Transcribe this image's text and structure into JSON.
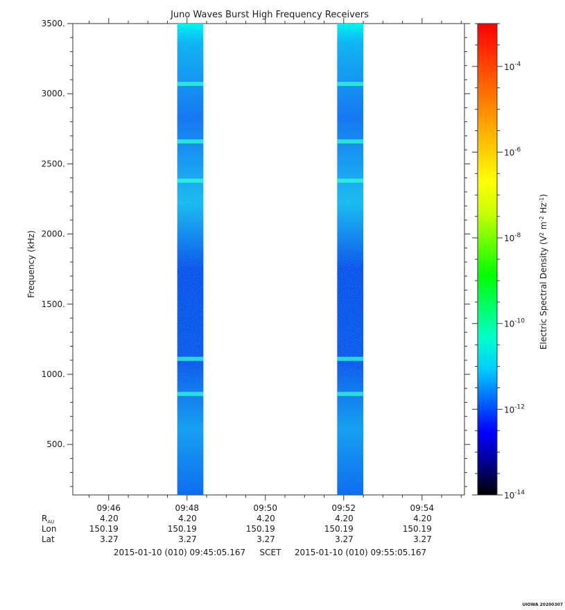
{
  "chart_data": {
    "type": "heatmap",
    "title": "Juno Waves Burst High Frequency Receivers",
    "ylabel": "Frequency (kHz)",
    "ylim": [
      140,
      3500
    ],
    "yticks": [
      500,
      1000,
      1500,
      2000,
      2500,
      3000,
      3500
    ],
    "ytick_labels": [
      "500.",
      "1000.",
      "1500.",
      "2000.",
      "2500.",
      "3000.",
      "3500."
    ],
    "xlim": [
      "09:45:05",
      "09:55:05"
    ],
    "xtick_labels": [
      "09:46",
      "09:48",
      "09:50",
      "09:52",
      "09:54"
    ],
    "ephemeris": {
      "rows": [
        {
          "label": "R",
          "sub": "AU",
          "values": [
            "4.20",
            "4.20",
            "4.20",
            "4.20",
            "4.20"
          ]
        },
        {
          "label": "Lon",
          "sub": "",
          "values": [
            "150.19",
            "150.19",
            "150.19",
            "150.19",
            "150.19"
          ]
        },
        {
          "label": "Lat",
          "sub": "",
          "values": [
            "3.27",
            "3.27",
            "3.27",
            "3.27",
            "3.27"
          ]
        }
      ]
    },
    "time_range": {
      "start": "2015-01-10 (010) 09:45:05.167",
      "label": "SCET",
      "end": "2015-01-10 (010) 09:55:05.167"
    },
    "bursts": [
      {
        "start": "09:47:45",
        "end": "09:48:25",
        "fmin": 140,
        "fmax": 3500
      },
      {
        "start": "09:51:50",
        "end": "09:52:30",
        "fmin": 140,
        "fmax": 3500
      }
    ],
    "bright_bands_khz": [
      3070,
      2660,
      2380,
      1110,
      860
    ],
    "colorbar": {
      "label_parts": [
        "Electric Spectral Density (V",
        "2",
        " m",
        "-2",
        " Hz",
        "-1",
        ")"
      ],
      "scale": "log",
      "range": [
        1e-14,
        0.001
      ],
      "tick_labels": [
        {
          "value": -14,
          "base": "10",
          "exp": "-14"
        },
        {
          "value": -12,
          "base": "10",
          "exp": "-12"
        },
        {
          "value": -10,
          "base": "10",
          "exp": "-10"
        },
        {
          "value": -8,
          "base": "10",
          "exp": "-8"
        },
        {
          "value": -6,
          "base": "10",
          "exp": "-6"
        },
        {
          "value": -4,
          "base": "10",
          "exp": "-4"
        }
      ],
      "colors": [
        "#000000",
        "#00008b",
        "#0000ff",
        "#0066ff",
        "#00ccff",
        "#00ffcc",
        "#00ff66",
        "#00ff00",
        "#66ff00",
        "#ccff00",
        "#ffff00",
        "#ffcc00",
        "#ff9900",
        "#ff6600",
        "#ff3300",
        "#ff0000"
      ]
    },
    "grid": false,
    "footer": "UIOWA 20200307"
  }
}
